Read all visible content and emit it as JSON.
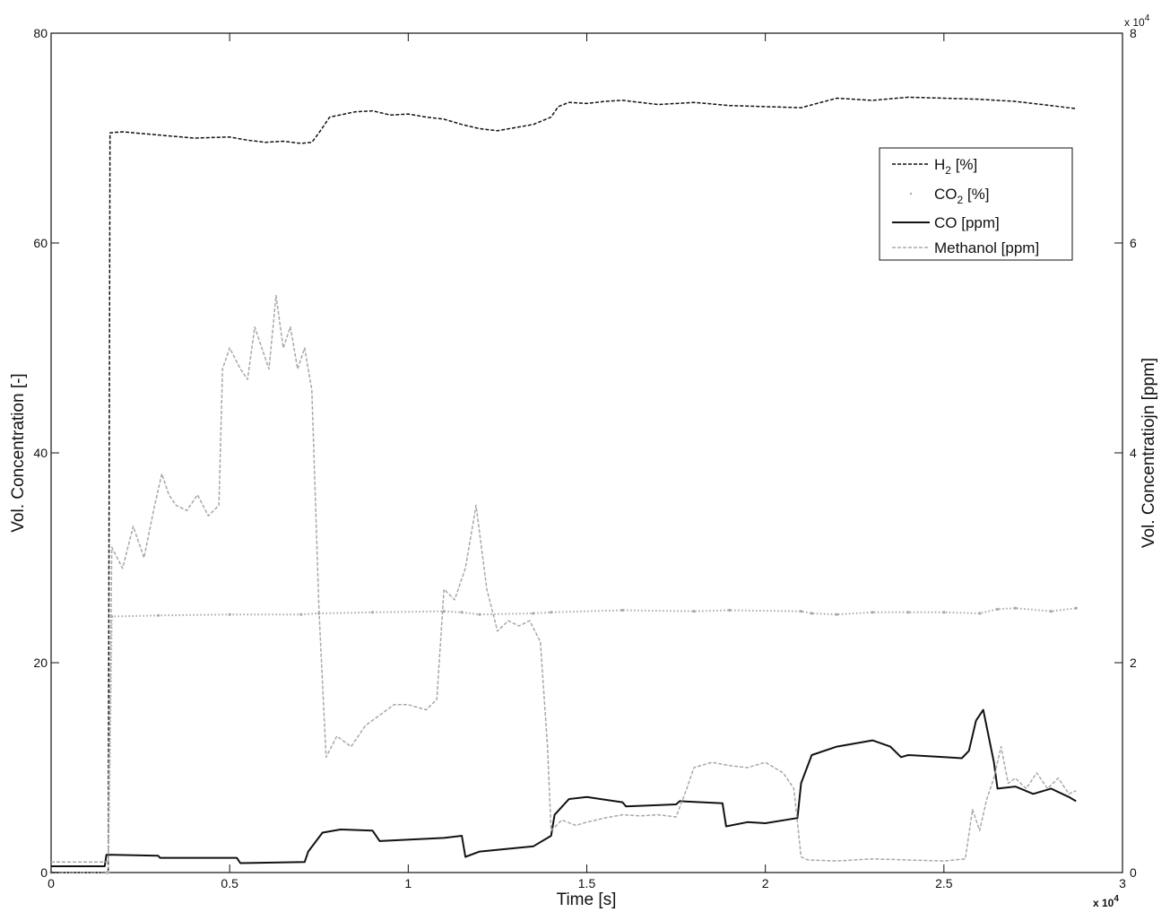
{
  "chart_data": {
    "type": "line",
    "xlabel": "Time [s]",
    "ylabel_left": "Vol. Concentration [-]",
    "ylabel_right": "Vol. Concentratiojn [ppm]",
    "x_exponent_label": "x 10",
    "x_exponent_power": "4",
    "right_exponent_label": "x 10",
    "right_exponent_power": "4",
    "xlim": [
      0,
      30000
    ],
    "ylim_left": [
      0,
      80
    ],
    "ylim_right": [
      0,
      80000
    ],
    "x_ticks": [
      0,
      5000,
      10000,
      15000,
      20000,
      25000,
      30000
    ],
    "x_tick_labels": [
      "0",
      "0.5",
      "1",
      "1.5",
      "2",
      "2.5",
      "3"
    ],
    "left_ticks": [
      0,
      20,
      40,
      60,
      80
    ],
    "left_tick_labels": [
      "0",
      "20",
      "40",
      "60",
      "80"
    ],
    "right_ticks": [
      0,
      20000,
      40000,
      60000,
      80000
    ],
    "right_tick_labels": [
      "0",
      "2",
      "4",
      "6",
      "8"
    ],
    "grid": false,
    "legend_position": "top-right",
    "legend": [
      {
        "key": "h2",
        "label": "H",
        "sub": "2",
        "suffix": " [%]"
      },
      {
        "key": "co2",
        "label": "CO",
        "sub": "2",
        "suffix": " [%]"
      },
      {
        "key": "co",
        "label": "CO [ppm]",
        "sub": "",
        "suffix": ""
      },
      {
        "key": "methanol",
        "label": "Methanol [ppm]",
        "sub": "",
        "suffix": ""
      }
    ],
    "series": [
      {
        "key": "h2",
        "axis": "left",
        "style": "dashed",
        "color": "#111111",
        "x": [
          0,
          1550,
          1600,
          1650,
          2000,
          3000,
          4000,
          5000,
          5500,
          6000,
          6500,
          7000,
          7300,
          7500,
          7800,
          8500,
          9000,
          9500,
          10000,
          10500,
          11000,
          11500,
          12000,
          12500,
          13000,
          13500,
          14000,
          14200,
          14500,
          15000,
          15500,
          16000,
          17000,
          18000,
          19000,
          20000,
          21000,
          22000,
          23000,
          24000,
          25000,
          26000,
          27000,
          28000,
          28700
        ],
        "y": [
          0,
          0,
          0,
          70.5,
          70.6,
          70.3,
          70.0,
          70.1,
          69.8,
          69.6,
          69.7,
          69.5,
          69.6,
          70.5,
          72.0,
          72.5,
          72.6,
          72.2,
          72.3,
          72.0,
          71.8,
          71.3,
          70.9,
          70.7,
          71.0,
          71.3,
          72.0,
          73.0,
          73.4,
          73.3,
          73.5,
          73.6,
          73.2,
          73.4,
          73.1,
          73.0,
          72.9,
          73.8,
          73.6,
          73.9,
          73.8,
          73.7,
          73.5,
          73.1,
          72.8
        ]
      },
      {
        "key": "co2",
        "axis": "left",
        "style": "dotted",
        "color": "#a8a8a8",
        "x": [
          0,
          1550,
          1600,
          1700,
          3000,
          5000,
          7000,
          7500,
          9000,
          11000,
          11500,
          12000,
          13500,
          14000,
          16000,
          18000,
          19000,
          21000,
          21300,
          22000,
          23000,
          24000,
          25000,
          26000,
          26500,
          27000,
          28000,
          28700
        ],
        "y": [
          0,
          0,
          0,
          24.4,
          24.5,
          24.6,
          24.6,
          24.7,
          24.8,
          24.9,
          24.8,
          24.6,
          24.7,
          24.8,
          25.0,
          24.9,
          25.0,
          24.9,
          24.7,
          24.6,
          24.8,
          24.8,
          24.8,
          24.7,
          25.1,
          25.2,
          24.9,
          25.2
        ]
      },
      {
        "key": "co",
        "axis": "right",
        "style": "solid",
        "color": "#111111",
        "x": [
          0,
          1500,
          1550,
          3000,
          3050,
          5200,
          5300,
          7100,
          7200,
          7600,
          8100,
          9000,
          9200,
          11000,
          11500,
          11600,
          12000,
          13500,
          14000,
          14100,
          14500,
          15000,
          16000,
          16100,
          17500,
          17600,
          18800,
          18900,
          19500,
          20000,
          20900,
          21000,
          21300,
          22000,
          23000,
          23500,
          23800,
          24000,
          25000,
          25500,
          25700,
          25900,
          26100,
          26400,
          26500,
          27000,
          27500,
          28000,
          28500,
          28700
        ],
        "y": [
          600,
          600,
          1700,
          1600,
          1400,
          1400,
          900,
          1000,
          2000,
          3800,
          4100,
          4000,
          3000,
          3300,
          3500,
          1500,
          2000,
          2500,
          3500,
          5500,
          7000,
          7200,
          6700,
          6300,
          6500,
          6800,
          6600,
          4400,
          4800,
          4700,
          5200,
          8500,
          11200,
          12000,
          12600,
          12000,
          11000,
          11200,
          11000,
          10900,
          11600,
          14500,
          15500,
          10500,
          8000,
          8200,
          7500,
          8000,
          7200,
          6800
        ]
      },
      {
        "key": "methanol",
        "axis": "right",
        "style": "dashed",
        "color": "#a8a8a8",
        "x": [
          0,
          1550,
          1600,
          1700,
          2000,
          2300,
          2600,
          2900,
          3100,
          3300,
          3500,
          3800,
          4100,
          4400,
          4700,
          4800,
          5000,
          5300,
          5500,
          5700,
          5900,
          6100,
          6300,
          6500,
          6700,
          6900,
          7100,
          7300,
          7500,
          7700,
          8000,
          8400,
          8800,
          9200,
          9600,
          10000,
          10500,
          10800,
          11000,
          11300,
          11600,
          11900,
          12200,
          12500,
          12800,
          13100,
          13400,
          13700,
          13900,
          14000,
          14300,
          14700,
          15000,
          15500,
          16000,
          16500,
          17000,
          17500,
          17800,
          18000,
          18500,
          19000,
          19500,
          20000,
          20500,
          20800,
          21000,
          21200,
          22000,
          23000,
          24000,
          25000,
          25600,
          25800,
          26000,
          26200,
          26400,
          26600,
          26800,
          27000,
          27300,
          27600,
          27900,
          28200,
          28500,
          28700
        ],
        "y": [
          1000,
          1000,
          1000,
          31000,
          29000,
          33000,
          30000,
          35000,
          38000,
          36000,
          35000,
          34500,
          36000,
          34000,
          35000,
          48000,
          50000,
          48000,
          47000,
          52000,
          50000,
          48000,
          55000,
          50000,
          52000,
          48000,
          50000,
          46000,
          25000,
          11000,
          13000,
          12000,
          14000,
          15000,
          16000,
          16000,
          15500,
          16500,
          27000,
          26000,
          29000,
          35000,
          27000,
          23000,
          24000,
          23500,
          24000,
          22000,
          12000,
          4000,
          5000,
          4500,
          4800,
          5200,
          5500,
          5400,
          5500,
          5300,
          8000,
          10000,
          10500,
          10200,
          10000,
          10500,
          9500,
          8000,
          1500,
          1200,
          1100,
          1300,
          1200,
          1100,
          1300,
          6000,
          4000,
          7000,
          9000,
          12000,
          8500,
          9000,
          8000,
          9500,
          8000,
          9000,
          7500,
          7800
        ]
      }
    ]
  }
}
